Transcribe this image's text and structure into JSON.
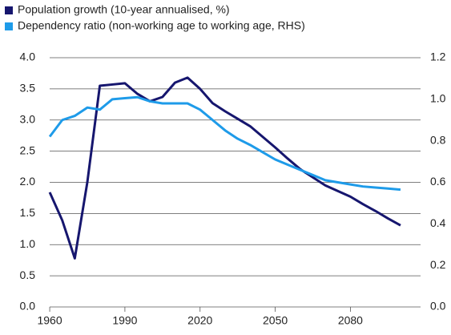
{
  "chart_data": {
    "type": "line",
    "x": [
      1960,
      1965,
      1970,
      1975,
      1980,
      1985,
      1990,
      1995,
      2000,
      2005,
      2010,
      2015,
      2020,
      2025,
      2030,
      2035,
      2040,
      2045,
      2050,
      2055,
      2060,
      2065,
      2070,
      2075,
      2080,
      2085,
      2090,
      2095,
      2100
    ],
    "series": [
      {
        "name": "Population growth (10-year annualised, %)",
        "color": "#16166e",
        "values": [
          1.84,
          1.39,
          0.78,
          2.0,
          3.55,
          3.57,
          3.59,
          3.42,
          3.3,
          3.37,
          3.6,
          3.68,
          3.5,
          3.27,
          3.14,
          3.02,
          2.9,
          2.73,
          2.56,
          2.38,
          2.21,
          2.08,
          1.95,
          1.86,
          1.77,
          1.65,
          1.54,
          1.42,
          1.31
        ]
      },
      {
        "name": "Dependency ratio (non-working age to working age, RHS)",
        "color": "#1e9be9",
        "axis": "y2",
        "values": [
          0.82,
          0.9,
          0.92,
          0.96,
          0.95,
          1.0,
          1.005,
          1.01,
          0.99,
          0.98,
          0.98,
          0.98,
          0.95,
          0.9,
          0.85,
          0.81,
          0.78,
          0.745,
          0.71,
          0.685,
          0.66,
          0.635,
          0.61,
          0.6,
          0.59,
          0.58,
          0.575,
          0.57,
          0.565
        ]
      }
    ],
    "xlim": [
      1955.5,
      2108
    ],
    "xticks": [
      1960,
      1990,
      2020,
      2050,
      2080
    ],
    "ylim": [
      0,
      4
    ],
    "yticks": [
      {
        "value": 0,
        "label": "0.0"
      },
      0.5,
      {
        "value": 1,
        "label": "1.0"
      },
      1.5,
      {
        "value": 2,
        "label": "2.0"
      },
      2.5,
      {
        "value": 3,
        "label": "3.0"
      },
      3.5,
      {
        "value": 4,
        "label": "4.0"
      }
    ],
    "y2lim": [
      0,
      1.2
    ],
    "y2ticks": [
      {
        "value": 0,
        "label": "0.0"
      },
      0.2,
      0.4,
      0.6,
      0.8,
      {
        "value": 1,
        "label": "1.0"
      },
      1.2
    ],
    "grid": true,
    "legend": "top-left"
  }
}
